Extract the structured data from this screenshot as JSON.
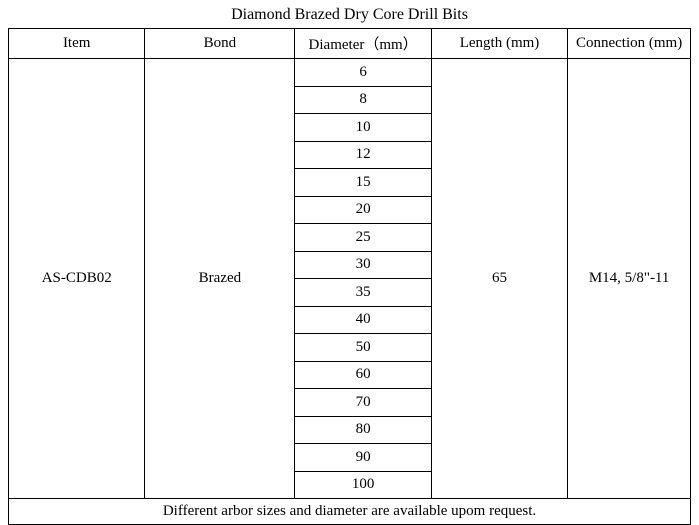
{
  "title": "Diamond Brazed Dry Core Drill Bits",
  "columns": {
    "item": "Item",
    "bond": "Bond",
    "diameter": "Diameter（mm）",
    "length": "Length (mm)",
    "connection": "Connection  (mm)"
  },
  "item": "AS-CDB02",
  "bond": "Brazed",
  "length": "65",
  "connection": "M14, 5/8\"-11",
  "diameters": [
    "6",
    "8",
    "10",
    "12",
    "15",
    "20",
    "25",
    "30",
    "35",
    "40",
    "50",
    "60",
    "70",
    "80",
    "90",
    "100"
  ],
  "footer": "Different arbor sizes and diameter are available upom request.",
  "styling": {
    "font_family": "Times New Roman",
    "background_color": "#ffffff",
    "border_color": "#000000",
    "text_color": "#000000",
    "title_fontsize": 16,
    "cell_fontsize": 15
  }
}
